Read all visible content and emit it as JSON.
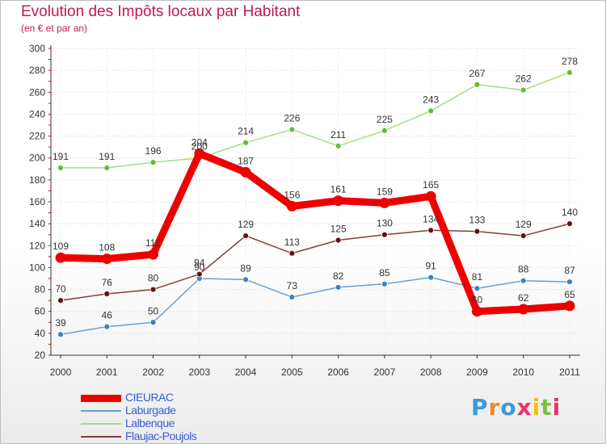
{
  "title": "Evolution des Impôts locaux par Habitant",
  "subtitle": "(en € et par an)",
  "brand": {
    "text": "Proxiti",
    "letter_colors": [
      "#3a9bd9",
      "#f08a24",
      "#3a9bd9",
      "#e8336b",
      "#f2c200",
      "#7bc043",
      "#e8336b"
    ]
  },
  "chart_data": {
    "type": "line",
    "title": "Evolution des Impôts locaux par Habitant",
    "subtitle": "(en € et par an)",
    "xlabel": "",
    "ylabel": "",
    "categories": [
      "2000",
      "2001",
      "2002",
      "2003",
      "2004",
      "2005",
      "2006",
      "2007",
      "2008",
      "2009",
      "2010",
      "2011"
    ],
    "ylim": [
      20,
      300
    ],
    "yticks": [
      20,
      40,
      60,
      80,
      100,
      120,
      140,
      160,
      180,
      200,
      220,
      240,
      260,
      280,
      300
    ],
    "grid": "horizontal dotted",
    "legend_position": "bottom-left",
    "series": [
      {
        "name": "CIEURAC",
        "color": "#ee0000",
        "marker_color": "#ee0000",
        "emphasis": "thick",
        "values": [
          109,
          108,
          112,
          204,
          187,
          156,
          161,
          159,
          165,
          60,
          62,
          65
        ],
        "labels": [
          "109",
          "108",
          "112",
          "204",
          "187",
          "156",
          "161",
          "159",
          "165",
          "60",
          "62",
          "65"
        ]
      },
      {
        "name": "Laburgade",
        "color": "#6a9fd0",
        "marker_color": "#3a82c4",
        "values": [
          39,
          46,
          50,
          90,
          89,
          73,
          82,
          85,
          91,
          81,
          88,
          87
        ],
        "labels": [
          "39",
          "46",
          "50",
          "90",
          "89",
          "73",
          "82",
          "85",
          "91",
          "81",
          "88",
          "87"
        ]
      },
      {
        "name": "Lalbenque",
        "color": "#a6dc84",
        "marker_color": "#66bb33",
        "values": [
          191,
          191,
          196,
          200,
          214,
          226,
          211,
          225,
          243,
          267,
          262,
          278
        ],
        "labels": [
          "191",
          "191",
          "196",
          "200",
          "214",
          "226",
          "211",
          "225",
          "243",
          "267",
          "262",
          "278"
        ]
      },
      {
        "name": "Flaujac-Poujols",
        "color": "#8a3a3a",
        "marker_color": "#661111",
        "values": [
          70,
          76,
          80,
          94,
          129,
          113,
          125,
          130,
          134,
          133,
          129,
          140
        ],
        "labels": [
          "70",
          "76",
          "80",
          "94",
          "129",
          "113",
          "125",
          "130",
          "134",
          "133",
          "129",
          "140"
        ]
      }
    ]
  }
}
